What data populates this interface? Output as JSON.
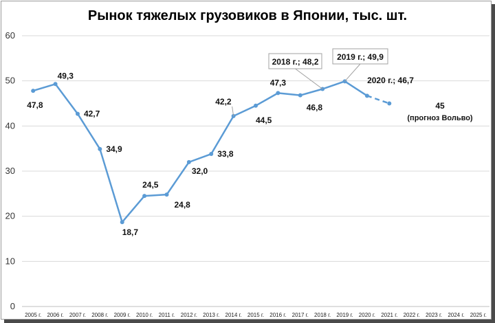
{
  "chart_data": {
    "type": "line",
    "title": "Рынок тяжелых грузовиков в Японии, тыс. шт.",
    "xlabel": "",
    "ylabel": "",
    "ylim": [
      0,
      60
    ],
    "yticks": [
      "0",
      "10",
      "20",
      "30",
      "40",
      "50",
      "60"
    ],
    "grid": true,
    "categories": [
      "2005 г.",
      "2006 г.",
      "2007 г.",
      "2008 г.",
      "2009 г.",
      "2010 г.",
      "2011 г.",
      "2012 г.",
      "2013 г.",
      "2014 г.",
      "2015 г.",
      "2016 г.",
      "2017 г.",
      "2018 г.",
      "2019 г.",
      "2020 г.",
      "2021 г.",
      "2022 г.",
      "2023 г.",
      "2024 г.",
      "2025 г."
    ],
    "series": [
      {
        "values": [
          47.8,
          49.3,
          42.7,
          34.9,
          18.7,
          24.5,
          24.8,
          32.0,
          33.8,
          42.2,
          44.5,
          47.3,
          46.8,
          48.2,
          49.9,
          46.7,
          45,
          null,
          null,
          null,
          null
        ],
        "labels": [
          "47,8",
          "49,3",
          "42,7",
          "34,9",
          "18,7",
          "24,5",
          "24,8",
          "32,0",
          "33,8",
          "42,2",
          "44,5",
          "47,3",
          "46,8",
          "2018 г.; 48,2",
          "2019 г.; 49,9",
          "2020 г.; 46,7",
          "45 (прогноз Вольво)",
          "",
          "",
          "",
          ""
        ],
        "forecast_from_index": 15,
        "color": "#5b9bd5"
      }
    ]
  }
}
